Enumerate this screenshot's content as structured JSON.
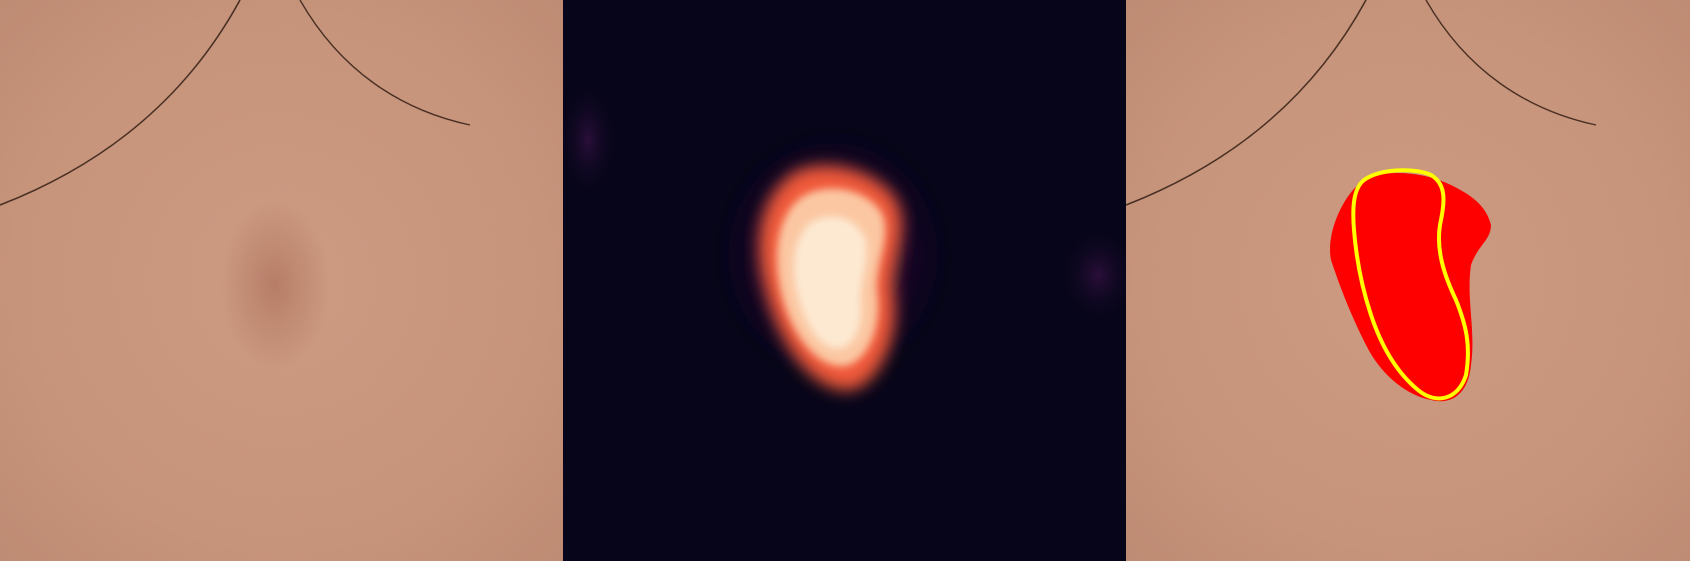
{
  "panels": [
    {
      "id": "dermoscopy-image",
      "kind": "photo"
    },
    {
      "id": "attention-heatmap",
      "kind": "heatmap",
      "colormap": "magma"
    },
    {
      "id": "segmentation-overlay",
      "kind": "overlay"
    }
  ],
  "colors": {
    "skin_base": "#c9957b",
    "skin_dark": "#b98269",
    "lesion_tint": "#a56451",
    "hair": "#4a3024",
    "heatmap_bg": "#07051a",
    "heatmap_mid": "#7a1f6a",
    "heatmap_hot": "#f15a3a",
    "heatmap_peak": "#fde9d2",
    "prediction_mask": "#ff0000",
    "ground_truth_contour": "#ffff00"
  }
}
